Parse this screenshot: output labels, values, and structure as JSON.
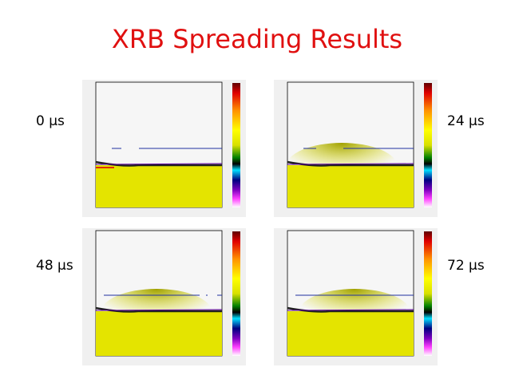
{
  "title": "XRB Spreading Results",
  "panels": [
    {
      "label": "0 μs"
    },
    {
      "label": "24 μs"
    },
    {
      "label": "48 μs"
    },
    {
      "label": "72 μs"
    }
  ]
}
